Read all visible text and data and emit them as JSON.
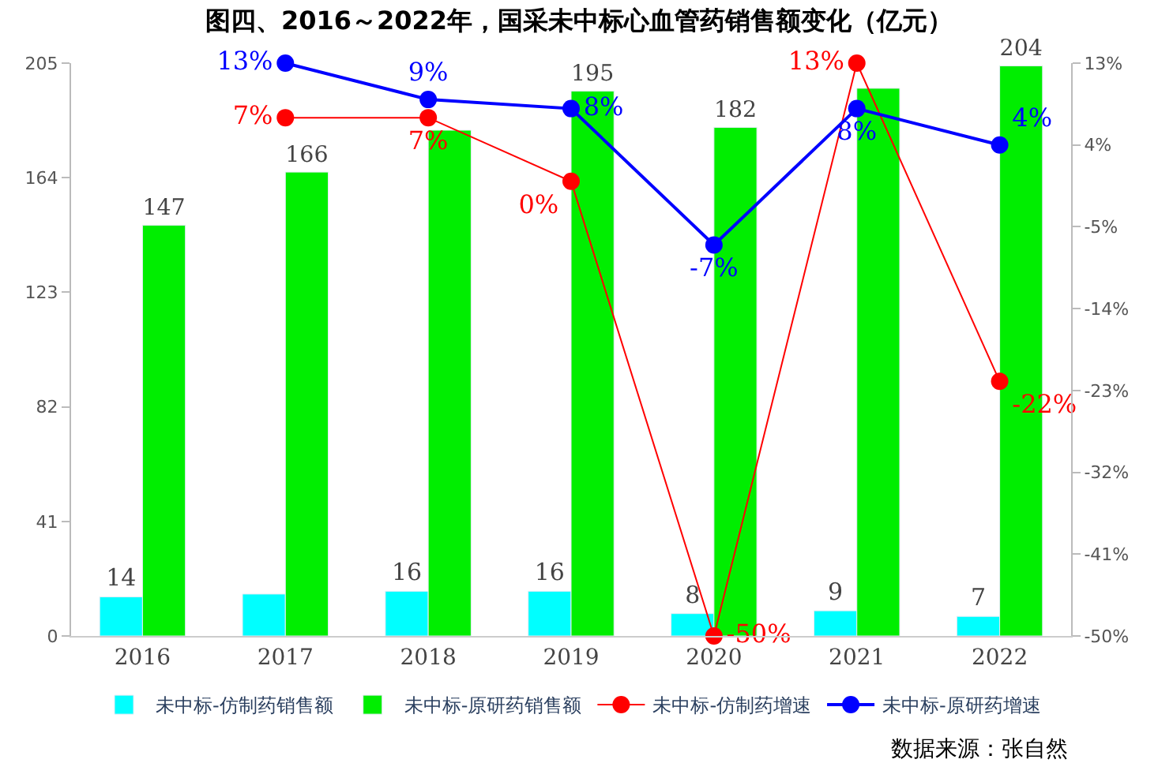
{
  "chart_data": {
    "type": "bar",
    "title": "图四、2016～2022年，国采未中标心血管药销售额变化（亿元）",
    "categories": [
      "2016",
      "2017",
      "2018",
      "2019",
      "2020",
      "2021",
      "2022"
    ],
    "series": [
      {
        "name": "未中标-仿制药销售额",
        "color": "#00ffff",
        "values": [
          14,
          15,
          16,
          16,
          8,
          9,
          7
        ],
        "value_labels": [
          "14",
          null,
          "16",
          "16",
          "8",
          "9",
          "7"
        ]
      },
      {
        "name": "未中标-原研药销售额",
        "color": "#00ee00",
        "values": [
          147,
          166,
          181,
          195,
          182,
          196,
          204
        ],
        "value_labels": [
          "147",
          "166",
          null,
          "195",
          "182",
          null,
          "204"
        ]
      },
      {
        "name": "未中标-仿制药增速",
        "type": "line",
        "axis": "y2",
        "color": "#ff0000",
        "values": [
          null,
          7,
          7,
          0,
          -50,
          13,
          -22
        ],
        "value_labels": [
          null,
          "7%",
          "7%",
          "0%",
          "-50%",
          "13%",
          "-22%"
        ]
      },
      {
        "name": "未中标-原研药增速",
        "type": "line",
        "axis": "y2",
        "color": "#0000ff",
        "values": [
          null,
          13,
          9,
          8,
          -7,
          8,
          4
        ],
        "value_labels": [
          null,
          "13%",
          "9%",
          "8%",
          "-7%",
          "8%",
          "4%"
        ]
      }
    ],
    "ylim": [
      0,
      205
    ],
    "yticks": [
      0,
      41,
      82,
      123,
      164,
      205
    ],
    "y2lim": [
      -50,
      13
    ],
    "y2ticks": [
      {
        "value": -50,
        "label": "-50%"
      },
      {
        "value": -41,
        "label": "-41%"
      },
      {
        "value": -32,
        "label": "-32%"
      },
      {
        "value": -23,
        "label": "-23%"
      },
      {
        "value": -14,
        "label": "-14%"
      },
      {
        "value": -5,
        "label": "-5%"
      },
      {
        "value": 4,
        "label": "4%"
      },
      {
        "value": 13,
        "label": "13%"
      }
    ],
    "marker": "circle",
    "legend": "bottom",
    "annotations": [
      "数据来源：张自然"
    ]
  }
}
